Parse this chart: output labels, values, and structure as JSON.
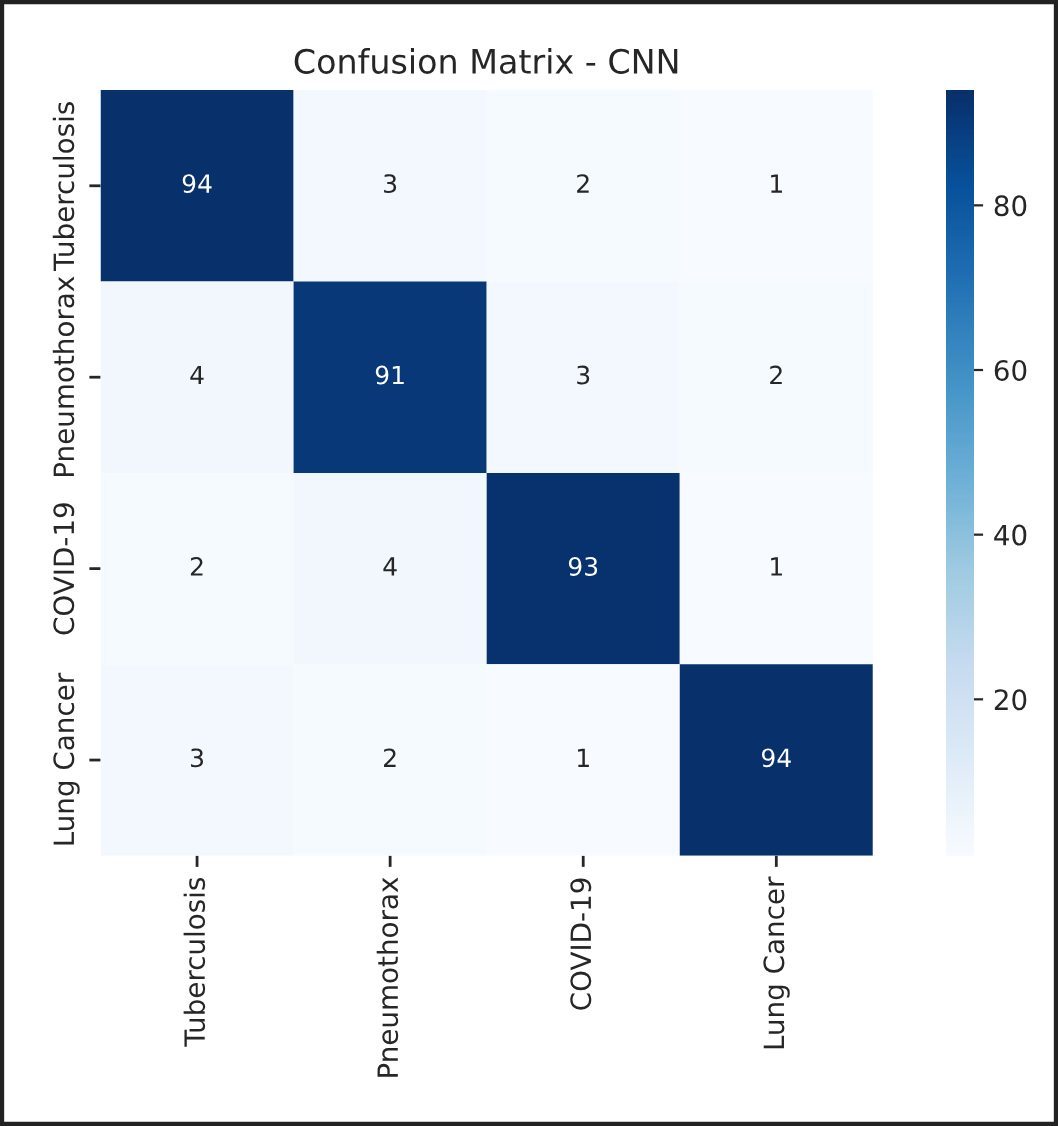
{
  "chart_data": {
    "type": "heatmap",
    "title": "Confusion Matrix - CNN",
    "categories": [
      "Tuberculosis",
      "Pneumothorax",
      "COVID-19",
      "Lung Cancer"
    ],
    "y_categories": [
      "Tuberculosis",
      "Pneumothorax",
      "COVID-19",
      "Lung Cancer"
    ],
    "cells": [
      [
        94,
        3,
        2,
        1
      ],
      [
        4,
        91,
        3,
        2
      ],
      [
        2,
        4,
        93,
        1
      ],
      [
        3,
        2,
        1,
        94
      ]
    ],
    "data_labels": true,
    "clim": [
      1,
      94
    ],
    "cticks": [
      20,
      40,
      60,
      80
    ]
  }
}
